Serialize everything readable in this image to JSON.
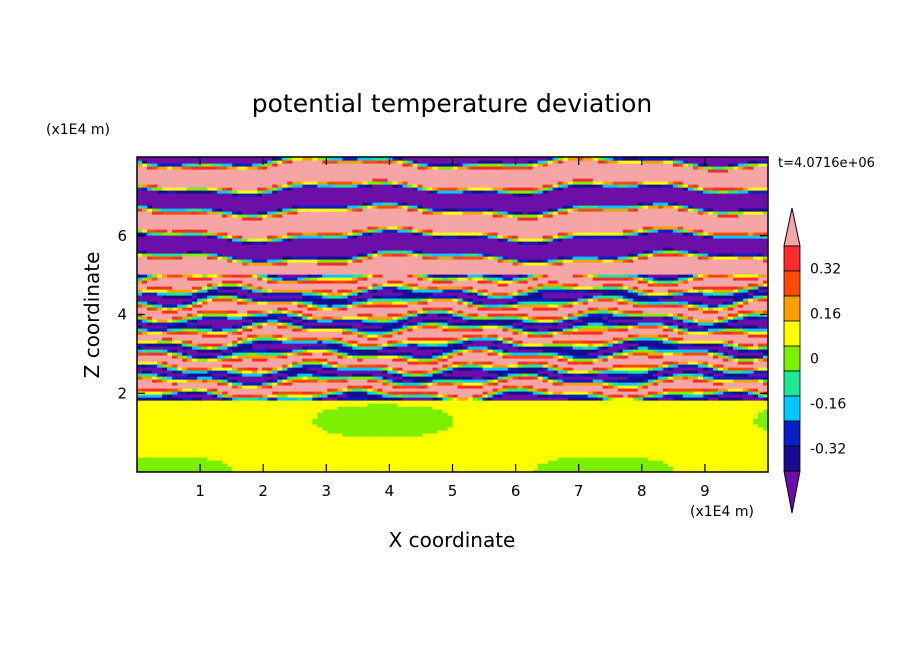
{
  "chart_data": {
    "type": "heatmap",
    "title": "potential temperature deviation",
    "time_label": "t=4.0716e+06",
    "xlabel": "X coordinate",
    "ylabel": "Z coordinate",
    "x_units": "(x1E4 m)",
    "y_units": "(x1E4 m)",
    "xlim": [
      0,
      10
    ],
    "ylim": [
      0,
      8
    ],
    "x_ticks": [
      1,
      2,
      3,
      4,
      5,
      6,
      7,
      8,
      9
    ],
    "y_ticks": [
      2,
      4,
      6
    ],
    "field_summary": [
      {
        "z_range": [
          0,
          1.8
        ],
        "description": "near-neutral field, values 0 to 0.08 with small negative patches"
      },
      {
        "z_range": [
          1.8,
          5.0
        ],
        "description": "thin interleaved layers, values -0.4 to 0.4"
      },
      {
        "z_range": [
          5.0,
          8.0
        ],
        "description": "broad alternating layers of values above 0.4 and below -0.4"
      }
    ],
    "colorbar": {
      "levels": [
        -0.4,
        -0.32,
        -0.24,
        -0.16,
        -0.08,
        0,
        0.08,
        0.16,
        0.24,
        0.32,
        0.4
      ],
      "tick_labels": [
        "0.32",
        "0.16",
        "0",
        "-0.16",
        "-0.32"
      ],
      "tick_values": [
        0.32,
        0.16,
        0,
        -0.16,
        -0.32
      ],
      "colors": [
        "#6b0fa8",
        "#1a0c8e",
        "#0a1ec8",
        "#00c8ff",
        "#1ee896",
        "#7cf000",
        "#ffff00",
        "#ffa000",
        "#ff4a00",
        "#ff2a2a",
        "#f5a5a5"
      ],
      "extend": "both"
    }
  }
}
